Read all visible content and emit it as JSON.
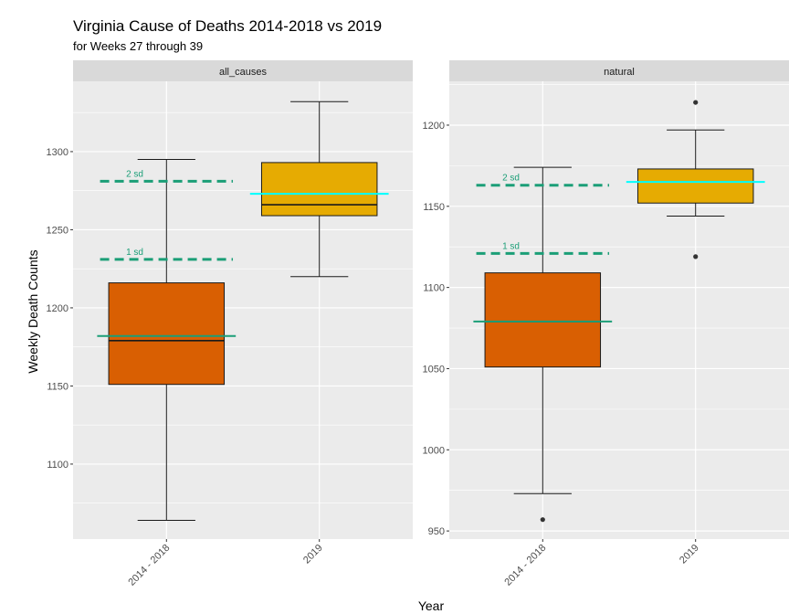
{
  "title": "Virginia Cause of Deaths  2014-2018 vs 2019",
  "subtitle": "for Weeks 27 through 39",
  "colors": {
    "panel_bg": "#ebebeb",
    "strip_bg": "#d9d9d9",
    "grid": "#ffffff",
    "box_2014_2018": "#d95f02",
    "box_2019": "#e6ab02",
    "sd_line": "#1b9e77",
    "mean_line_2014_2018": "#1b9e77",
    "mean_line_2019": "#00ffff",
    "outline": "#1a1a1a"
  },
  "chart_data": {
    "type": "boxplot",
    "title": "Virginia Cause of Deaths  2014-2018 vs 2019",
    "subtitle": "for Weeks 27 through 39",
    "xlabel": "Year",
    "ylabel": "Weekly Death Counts",
    "categories": [
      "2014 - 2018",
      "2019"
    ],
    "grid": true,
    "facets": [
      {
        "name": "all_causes",
        "ylim": [
          1052,
          1345
        ],
        "yticks": [
          1100,
          1150,
          1200,
          1250,
          1300
        ],
        "boxes": [
          {
            "category": "2014 - 2018",
            "whisker_low": 1064,
            "q1": 1151,
            "median": 1179,
            "q3": 1216,
            "whisker_high": 1295,
            "outliers": []
          },
          {
            "category": "2019",
            "whisker_low": 1220,
            "q1": 1259,
            "median": 1266,
            "q3": 1293,
            "whisker_high": 1332,
            "outliers": []
          }
        ],
        "mean_2014_2018": 1182,
        "mean_2019": 1273,
        "sd_lines": [
          {
            "label": "1 sd",
            "value": 1231
          },
          {
            "label": "2 sd",
            "value": 1281
          }
        ]
      },
      {
        "name": "natural",
        "ylim": [
          945,
          1227
        ],
        "yticks": [
          950,
          1000,
          1050,
          1100,
          1150,
          1200
        ],
        "boxes": [
          {
            "category": "2014 - 2018",
            "whisker_low": 973,
            "q1": 1051,
            "median": 1079,
            "q3": 1109,
            "whisker_high": 1174,
            "outliers": [
              957
            ]
          },
          {
            "category": "2019",
            "whisker_low": 1144,
            "q1": 1152,
            "median": 1165,
            "q3": 1173,
            "whisker_high": 1197,
            "outliers": [
              1119,
              1214
            ]
          }
        ],
        "mean_2014_2018": 1079,
        "mean_2019": 1165,
        "sd_lines": [
          {
            "label": "1 sd",
            "value": 1121
          },
          {
            "label": "2 sd",
            "value": 1163
          }
        ]
      }
    ]
  }
}
